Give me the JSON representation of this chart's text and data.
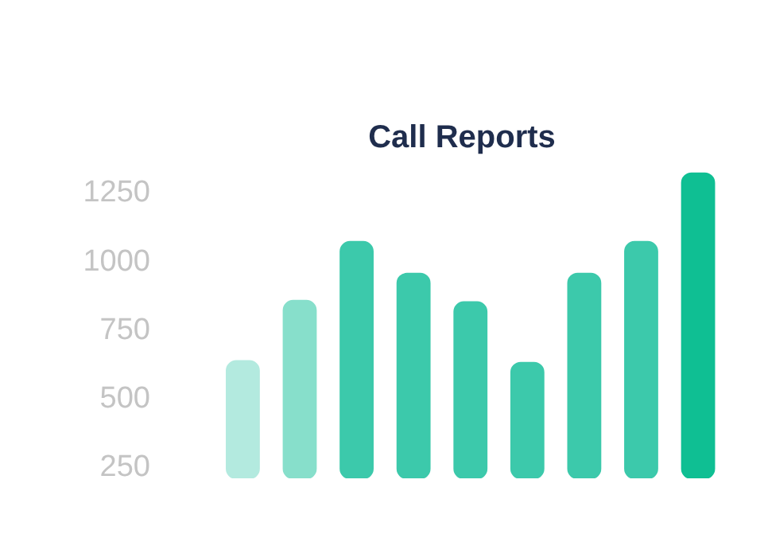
{
  "chart_data": {
    "type": "bar",
    "title": "Call Reports",
    "categories": [
      null,
      null,
      null,
      null,
      null,
      null,
      null,
      null,
      null
    ],
    "values": [
      628,
      848,
      1063,
      947,
      843,
      622,
      947,
      1063,
      1313
    ],
    "colors": [
      "#b3eadf",
      "#87dfcb",
      "#3cc9ab",
      "#3cc9ab",
      "#3cc9ab",
      "#3cc9ab",
      "#3cc9ab",
      "#3cc9ab",
      "#0fbf93"
    ],
    "ylim": [
      200,
      1350
    ],
    "yticks": [
      250,
      500,
      750,
      1000,
      1250
    ],
    "tick_labels": "y",
    "grid": false
  }
}
